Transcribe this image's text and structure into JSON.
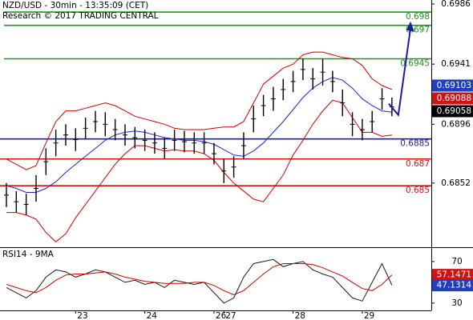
{
  "chart_data": [
    {
      "type": "hilo",
      "title": "NZD/USD - 30min - 13:35:09 (CET)",
      "subtitle": "Research © 2017 TRADING CENTRAL",
      "categories": [
        null,
        null,
        null,
        null,
        null,
        null,
        null,
        "23",
        null,
        null,
        null,
        null,
        null,
        null,
        "24",
        null,
        null,
        null,
        null,
        null,
        null,
        "26",
        "27",
        null,
        null,
        null,
        null,
        null,
        null,
        "28",
        null,
        null,
        null,
        null,
        null,
        null,
        "29",
        null,
        null,
        null
      ],
      "high": [
        0.6852,
        0.6846,
        0.6844,
        0.6858,
        0.6878,
        0.6892,
        0.6896,
        0.6893,
        0.6901,
        0.6906,
        0.6905,
        0.69,
        0.6896,
        0.6894,
        0.6892,
        0.689,
        0.6886,
        0.6892,
        0.6891,
        0.689,
        0.689,
        0.6882,
        0.687,
        0.6872,
        0.689,
        0.691,
        0.6918,
        0.6924,
        0.693,
        0.6936,
        0.6945,
        0.6938,
        0.6945,
        0.6936,
        0.6922,
        0.6905,
        0.69,
        0.6906,
        0.6923,
        0.6916
      ],
      "low": [
        0.6834,
        0.683,
        0.6828,
        0.6838,
        0.6858,
        0.6872,
        0.688,
        0.6876,
        0.6885,
        0.689,
        0.6887,
        0.6884,
        0.688,
        0.6878,
        0.6876,
        0.6874,
        0.687,
        0.6876,
        0.6875,
        0.6874,
        0.6874,
        0.6866,
        0.6852,
        0.6856,
        0.687,
        0.689,
        0.6902,
        0.6906,
        0.6914,
        0.692,
        0.6929,
        0.6922,
        0.6925,
        0.692,
        0.6902,
        0.6887,
        0.6884,
        0.689,
        0.6907,
        0.6902
      ],
      "color": "#000000",
      "series": [
        {
          "color": "#2323c8",
          "values": [
            0.685,
            0.6848,
            0.6845,
            0.6845,
            0.6848,
            0.6853,
            0.686,
            0.6866,
            0.6872,
            0.6878,
            0.6884,
            0.6888,
            0.689,
            0.6891,
            0.689,
            0.6888,
            0.6886,
            0.6885,
            0.6884,
            0.6884,
            0.6883,
            0.6881,
            0.6877,
            0.6873,
            0.6872,
            0.6876,
            0.6882,
            0.689,
            0.6898,
            0.6907,
            0.6916,
            0.6923,
            0.6928,
            0.6931,
            0.6929,
            0.6923,
            0.6915,
            0.691,
            0.6906,
            0.6905
          ]
        },
        {
          "color": "#c80000",
          "values": [
            0.687,
            0.6866,
            0.6862,
            0.6865,
            0.6882,
            0.6898,
            0.6906,
            0.6906,
            0.6908,
            0.691,
            0.6912,
            0.691,
            0.6906,
            0.6902,
            0.69,
            0.6898,
            0.6896,
            0.6893,
            0.6892,
            0.6892,
            0.6892,
            0.6893,
            0.6894,
            0.6894,
            0.6898,
            0.6912,
            0.6926,
            0.6932,
            0.6938,
            0.6941,
            0.6948,
            0.695,
            0.695,
            0.6948,
            0.6946,
            0.6945,
            0.694,
            0.693,
            0.6925,
            0.6922
          ]
        },
        {
          "color": "#c80000",
          "values": [
            0.683,
            0.683,
            0.6828,
            0.6825,
            0.6815,
            0.6808,
            0.6814,
            0.6826,
            0.6836,
            0.6846,
            0.6856,
            0.6866,
            0.6874,
            0.688,
            0.688,
            0.6878,
            0.6876,
            0.6877,
            0.6876,
            0.6876,
            0.6874,
            0.6869,
            0.686,
            0.6852,
            0.6846,
            0.684,
            0.6838,
            0.6848,
            0.6858,
            0.6873,
            0.6884,
            0.6896,
            0.6906,
            0.6914,
            0.6912,
            0.6901,
            0.689,
            0.689,
            0.6887,
            0.6888
          ]
        }
      ],
      "levels": [
        {
          "value": 0.698,
          "color": "#1a961a"
        },
        {
          "value": 0.697,
          "color": "#1a961a"
        },
        {
          "value": 0.6945,
          "color": "#1a961a"
        },
        {
          "value": 0.6885,
          "color": "#1c1ca0"
        },
        {
          "value": 0.687,
          "color": "#d01414"
        },
        {
          "value": 0.685,
          "color": "#d01414"
        }
      ],
      "price_tags": [
        {
          "value": 0.69103,
          "color": "#1f3fbf"
        },
        {
          "value": 0.69088,
          "color": "#d01414"
        },
        {
          "value": 0.69058,
          "color": "#000000"
        }
      ],
      "ylim": [
        0.6804,
        0.6989
      ],
      "yticks": [
        0.6852,
        0.6896,
        0.6941,
        0.6986
      ]
    },
    {
      "type": "line",
      "title": "RSI14 - 9MA",
      "series": [
        {
          "color": "#1c1c1c",
          "values": [
            45,
            40,
            35,
            42,
            55,
            62,
            60,
            55,
            58,
            62,
            60,
            55,
            50,
            52,
            48,
            50,
            45,
            52,
            50,
            48,
            50,
            40,
            30,
            35,
            55,
            68,
            70,
            72,
            65,
            68,
            70,
            62,
            58,
            55,
            45,
            35,
            32,
            50,
            68,
            47.1314
          ]
        },
        {
          "color": "#c80000",
          "values": [
            48,
            45,
            42,
            40,
            45,
            52,
            57,
            58,
            58,
            59,
            60,
            58,
            55,
            53,
            51,
            50,
            49,
            49,
            49,
            50,
            50,
            47,
            42,
            38,
            42,
            50,
            58,
            65,
            68,
            68,
            68,
            67,
            64,
            60,
            56,
            50,
            44,
            42,
            48,
            57.1471
          ]
        }
      ],
      "price_tags": [
        {
          "value": 57.1471,
          "color": "#d01414"
        },
        {
          "value": 47.1314,
          "color": "#1f3fbf"
        }
      ],
      "ylim": [
        23,
        83
      ],
      "yticks": [
        30,
        70
      ]
    }
  ]
}
